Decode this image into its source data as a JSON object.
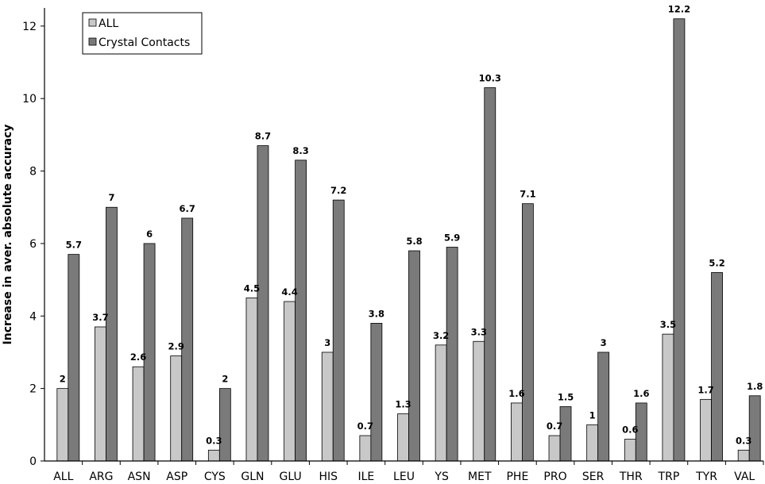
{
  "chart_data": {
    "type": "bar",
    "categories": [
      "ALL",
      "ARG",
      "ASN",
      "ASP",
      "CYS",
      "GLN",
      "GLU",
      "HIS",
      "ILE",
      "LEU",
      "YS",
      "MET",
      "PHE",
      "PRO",
      "SER",
      "THR",
      "TRP",
      "TYR",
      "VAL"
    ],
    "series": [
      {
        "name": "ALL",
        "color": "#c8c8c8",
        "values": [
          2,
          3.7,
          2.6,
          2.9,
          0.3,
          4.5,
          4.4,
          3,
          0.7,
          1.3,
          3.2,
          3.3,
          1.6,
          0.7,
          1,
          0.6,
          3.5,
          1.7,
          0.3
        ]
      },
      {
        "name": "Crystal Contacts",
        "color": "#7a7a7a",
        "values": [
          5.7,
          7,
          6,
          6.7,
          2,
          8.7,
          8.3,
          7.2,
          3.8,
          5.8,
          5.9,
          10.3,
          7.1,
          1.5,
          3,
          1.6,
          12.2,
          5.2,
          1.8
        ]
      }
    ],
    "title": "",
    "xlabel": "",
    "ylabel": "Increase in aver. absolute accuracy",
    "ylim": [
      0,
      12.5
    ],
    "yticks": [
      0,
      2,
      4,
      6,
      8,
      10,
      12
    ],
    "grid": false,
    "legend_position": "top-left"
  }
}
